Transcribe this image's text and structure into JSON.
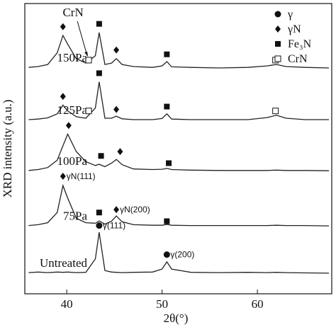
{
  "chart_data": {
    "type": "line",
    "xlabel": "2θ(°)",
    "ylabel": "XRD intensity (a.u.)",
    "xlim": [
      35.6,
      67.8
    ],
    "ylim": [
      0,
      100
    ],
    "xticks": [
      40,
      50,
      60
    ],
    "x": [
      36,
      37,
      38,
      39,
      39.6,
      40.1,
      41,
      42,
      43,
      43.4,
      44,
      44.7,
      45.2,
      45.8,
      47,
      49,
      50.0,
      50.5,
      51,
      53,
      56,
      59,
      61,
      62,
      63,
      65,
      67.5
    ],
    "series": [
      {
        "name": "150Pa",
        "color": "#222222",
        "values": [
          78,
          78.3,
          79,
          83,
          89,
          86,
          81,
          79.5,
          82,
          90,
          79,
          79.5,
          81,
          79,
          78.3,
          78,
          78.5,
          80,
          78.2,
          78,
          77.8,
          78,
          78.5,
          79,
          78.3,
          78,
          77.8
        ]
      },
      {
        "name": "125Pa",
        "color": "#222222",
        "values": [
          60,
          60.2,
          60.6,
          62,
          65,
          63,
          61,
          60.5,
          64,
          73,
          60.5,
          60.5,
          61.2,
          60.3,
          60,
          60,
          60.4,
          62,
          60.2,
          60,
          60,
          60,
          60.7,
          61.5,
          60.5,
          60,
          60
        ]
      },
      {
        "name": "100Pa",
        "color": "#222222",
        "values": [
          42.5,
          42.8,
          43.5,
          46,
          51,
          55,
          49,
          45.5,
          44.2,
          44.6,
          43.8,
          45,
          46.3,
          44.5,
          43,
          42.8,
          42.9,
          43.2,
          42.8,
          42.6,
          42.5,
          42.5,
          42.5,
          42.6,
          42.5,
          42.5,
          42.4
        ]
      },
      {
        "name": "75Pa",
        "color": "#222222",
        "values": [
          23.5,
          23.8,
          24.5,
          28,
          37.3,
          33,
          26,
          24.5,
          24.3,
          25.1,
          24,
          25,
          26.8,
          24.8,
          23.8,
          23.6,
          23.6,
          23.9,
          23.6,
          23.5,
          23.5,
          23.5,
          23.5,
          23.6,
          23.5,
          23.5,
          23.4
        ]
      },
      {
        "name": "Untreated",
        "color": "#222222",
        "values": [
          7.3,
          7.5,
          7.3,
          7.5,
          7.4,
          7.5,
          7.3,
          7.4,
          12,
          21.2,
          8,
          7.5,
          7.4,
          7.3,
          7.4,
          7.5,
          8.5,
          11,
          8.5,
          7.4,
          7.3,
          7.4,
          7.3,
          7.4,
          7.3,
          7.2,
          7.1
        ]
      }
    ],
    "phases": [
      {
        "name": "γ",
        "marker": "circle",
        "points": [
          {
            "x": 43.4,
            "y": 23.5,
            "label": "γ(111)"
          },
          {
            "x": 50.5,
            "y": 13.5,
            "label": "γ(200)"
          }
        ]
      },
      {
        "name": "γN",
        "marker": "diamond",
        "points": [
          {
            "x": 39.6,
            "y": 92
          },
          {
            "x": 45.2,
            "y": 84
          },
          {
            "x": 39.6,
            "y": 68
          },
          {
            "x": 45.2,
            "y": 63.5
          },
          {
            "x": 40.2,
            "y": 58
          },
          {
            "x": 45.6,
            "y": 49
          },
          {
            "x": 39.6,
            "y": 40.5,
            "label": "γN(111)"
          },
          {
            "x": 45.2,
            "y": 29,
            "label": "γN(200)"
          }
        ]
      },
      {
        "name": "Fe₃N",
        "marker": "square",
        "points": [
          {
            "x": 43.4,
            "y": 93
          },
          {
            "x": 50.5,
            "y": 82.5
          },
          {
            "x": 43.4,
            "y": 76
          },
          {
            "x": 50.5,
            "y": 64.5
          },
          {
            "x": 43.6,
            "y": 47.5
          },
          {
            "x": 50.7,
            "y": 45
          },
          {
            "x": 43.4,
            "y": 28
          },
          {
            "x": 50.5,
            "y": 25
          }
        ]
      },
      {
        "name": "CrN",
        "marker": "open-square",
        "points": [
          {
            "x": 42.3,
            "y": 80.5
          },
          {
            "x": 61.9,
            "y": 80.5
          },
          {
            "x": 42.3,
            "y": 63
          },
          {
            "x": 61.9,
            "y": 63
          }
        ]
      }
    ],
    "callout": {
      "text": "CrN",
      "x": 42.3,
      "y": 80.5
    },
    "legend": "top-right"
  }
}
